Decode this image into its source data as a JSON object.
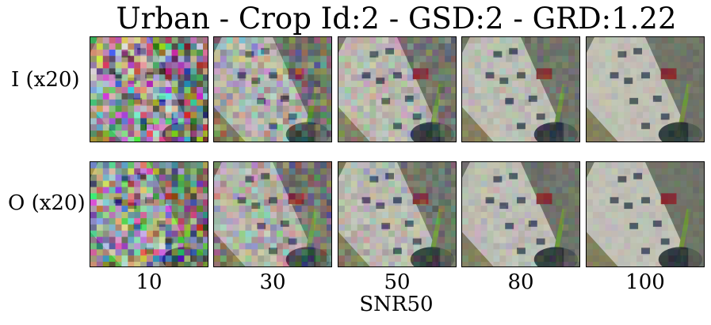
{
  "title": "Urban - Crop Id:2 - GSD:2 - GRD:1.22",
  "rows": [
    {
      "label": "I (x20)"
    },
    {
      "label": "O (x20)"
    }
  ],
  "columns": [
    "10",
    "30",
    "50",
    "80",
    "100"
  ],
  "xlabel": "SNR50",
  "colors": {
    "ground": "#6f7468",
    "building": "#d4d2c8",
    "roof_red": "#8a2a2e",
    "shadow": "#1f2a30",
    "vegetation": "#6f9a3a"
  }
}
